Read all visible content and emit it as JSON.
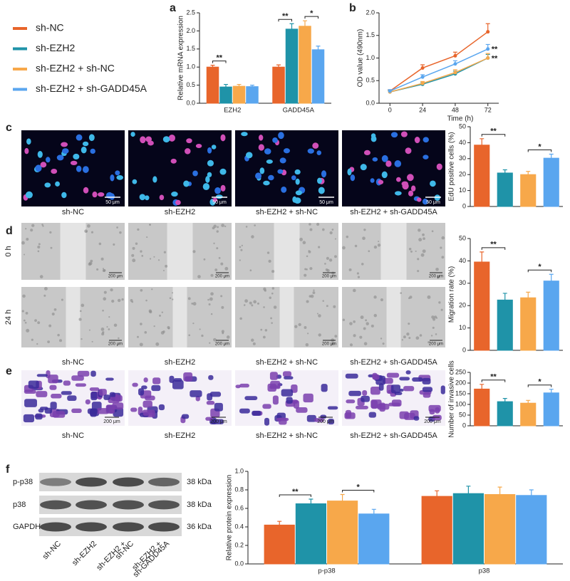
{
  "chart_data": [
    {
      "type": "bar",
      "ylabel": "Relative mRNA expression",
      "categories": [
        "EZH2",
        "GADD45A"
      ],
      "series": [
        {
          "name": "sh-NC",
          "color": "#e8652b",
          "values": [
            1.0,
            1.0
          ],
          "errors": [
            0.05,
            0.06
          ]
        },
        {
          "name": "sh-EZH2",
          "color": "#1f93a8",
          "values": [
            0.45,
            2.05
          ],
          "errors": [
            0.07,
            0.15
          ]
        },
        {
          "name": "sh-EZH2 + sh-NC",
          "color": "#f7a84a",
          "values": [
            0.47,
            2.13
          ],
          "errors": [
            0.05,
            0.15
          ]
        },
        {
          "name": "sh-EZH2 + sh-GADD45A",
          "color": "#5aa6ef",
          "values": [
            0.46,
            1.48
          ],
          "errors": [
            0.04,
            0.1
          ]
        }
      ],
      "ylim": [
        0,
        2.5
      ],
      "yticks": [
        {
          "value": 0,
          "label": "0.0"
        },
        {
          "value": 0.5,
          "label": "0.5"
        },
        {
          "value": 1,
          "label": "1.0"
        },
        {
          "value": 1.5,
          "label": "1.5"
        },
        {
          "value": 2,
          "label": "2.0"
        },
        {
          "value": 2.5,
          "label": "2.5"
        }
      ],
      "annotations": [
        {
          "text": "**",
          "category": 0,
          "between": [
            0,
            1
          ]
        },
        {
          "text": "**",
          "category": 1,
          "between": [
            0,
            1
          ]
        },
        {
          "text": "*",
          "category": 1,
          "between": [
            2,
            3
          ]
        }
      ]
    },
    {
      "type": "line",
      "xlabel": "Time (h)",
      "ylabel": "OD value (490nm)",
      "x": [
        0,
        24,
        48,
        72
      ],
      "series": [
        {
          "color": "#e8652b",
          "values": [
            0.27,
            0.78,
            1.05,
            1.58
          ],
          "errors": [
            0.03,
            0.07,
            0.08,
            0.18
          ]
        },
        {
          "color": "#1f93a8",
          "values": [
            0.25,
            0.42,
            0.65,
            1.0
          ],
          "errors": [
            0.03,
            0.04,
            0.06,
            0.08
          ]
        },
        {
          "color": "#f7a84a",
          "values": [
            0.25,
            0.44,
            0.68,
            1.0
          ],
          "errors": [
            0.03,
            0.04,
            0.06,
            0.1
          ]
        },
        {
          "color": "#5aa6ef",
          "values": [
            0.27,
            0.58,
            0.87,
            1.2
          ],
          "errors": [
            0.03,
            0.05,
            0.07,
            0.1
          ]
        }
      ],
      "xlim": [
        -8,
        80
      ],
      "xticks": [
        0,
        24,
        48,
        72
      ],
      "ylim": [
        0,
        2
      ],
      "yticks": [
        {
          "value": 0,
          "label": "0.0"
        },
        {
          "value": 0.5,
          "label": "0.5"
        },
        {
          "value": 1,
          "label": "1.0"
        },
        {
          "value": 1.5,
          "label": "1.5"
        },
        {
          "value": 2,
          "label": "2.0"
        }
      ],
      "annotations": [
        {
          "text": "**",
          "series": 3
        },
        {
          "text": "**",
          "series": 1
        }
      ]
    },
    {
      "type": "bar",
      "ylabel": "EdU positive cells (%)",
      "categories": [
        null,
        null,
        null,
        null
      ],
      "values": [
        38.5,
        21,
        20,
        30.3
      ],
      "errors": [
        4,
        2,
        2,
        2.5
      ],
      "colors": [
        "#e8652b",
        "#1f93a8",
        "#f7a84a",
        "#5aa6ef"
      ],
      "ylim": [
        0,
        50
      ],
      "yticks": [
        0,
        10,
        20,
        30,
        40,
        50
      ],
      "annotations": [
        {
          "text": "**",
          "between": [
            0,
            1
          ]
        },
        {
          "text": "*",
          "between": [
            2,
            3
          ]
        }
      ]
    },
    {
      "type": "bar",
      "ylabel": "Migration rate (%)",
      "categories": [
        null,
        null,
        null,
        null
      ],
      "values": [
        39.5,
        22.5,
        23.5,
        31
      ],
      "errors": [
        4.5,
        3,
        2.5,
        3
      ],
      "colors": [
        "#e8652b",
        "#1f93a8",
        "#f7a84a",
        "#5aa6ef"
      ],
      "ylim": [
        0,
        50
      ],
      "yticks": [
        0,
        10,
        20,
        30,
        40,
        50
      ],
      "annotations": [
        {
          "text": "**",
          "between": [
            0,
            1
          ]
        },
        {
          "text": "*",
          "between": [
            2,
            3
          ]
        }
      ]
    },
    {
      "type": "bar",
      "ylabel": "Number of invasive cells",
      "categories": [
        null,
        null,
        null,
        null
      ],
      "values": [
        172,
        113,
        106,
        154
      ],
      "errors": [
        22,
        15,
        13,
        17
      ],
      "colors": [
        "#e8652b",
        "#1f93a8",
        "#f7a84a",
        "#5aa6ef"
      ],
      "ylim": [
        0,
        250
      ],
      "yticks": [
        0,
        50,
        100,
        150,
        200,
        250
      ],
      "annotations": [
        {
          "text": "**",
          "between": [
            0,
            1
          ]
        },
        {
          "text": "*",
          "between": [
            2,
            3
          ]
        }
      ]
    },
    {
      "type": "bar",
      "ylabel": "Relative protein expression",
      "categories": [
        "p-p38",
        "p38"
      ],
      "series": [
        {
          "color": "#e8652b",
          "values": [
            0.42,
            0.73
          ],
          "errors": [
            0.04,
            0.06
          ]
        },
        {
          "color": "#1f93a8",
          "values": [
            0.65,
            0.76
          ],
          "errors": [
            0.05,
            0.08
          ]
        },
        {
          "color": "#f7a84a",
          "values": [
            0.68,
            0.75
          ],
          "errors": [
            0.07,
            0.08
          ]
        },
        {
          "color": "#5aa6ef",
          "values": [
            0.54,
            0.74
          ],
          "errors": [
            0.05,
            0.06
          ]
        }
      ],
      "ylim": [
        0,
        1
      ],
      "yticks": [
        {
          "value": 0,
          "label": "0.0"
        },
        {
          "value": 0.2,
          "label": "0.2"
        },
        {
          "value": 0.4,
          "label": "0.4"
        },
        {
          "value": 0.6,
          "label": "0.6"
        },
        {
          "value": 0.8,
          "label": "0.8"
        },
        {
          "value": 1,
          "label": "1.0"
        }
      ],
      "annotations": [
        {
          "text": "**",
          "category": 0,
          "between": [
            0,
            1
          ]
        },
        {
          "text": "*",
          "category": 0,
          "between": [
            2,
            3
          ]
        }
      ]
    }
  ],
  "panels": {
    "letters": [
      "a",
      "b",
      "c",
      "d",
      "e",
      "f"
    ],
    "groups": [
      "sh-NC",
      "sh-EZH2",
      "sh-EZH2 + sh-NC",
      "sh-EZH2 + sh-GADD45A"
    ],
    "scale_bars": [
      "50 μm",
      "200 μm"
    ],
    "times": [
      "0 h",
      "24 h"
    ],
    "blot": {
      "rows": [
        {
          "name": "p-p38",
          "size": "38 kDa"
        },
        {
          "name": "p38",
          "size": "38 kDa"
        },
        {
          "name": "GAPDH",
          "size": "36 kDa"
        }
      ],
      "lanes": [
        [
          "sh-NC"
        ],
        [
          "sh-EZH2"
        ],
        [
          "sh-EZH2 +",
          "sh-NC"
        ],
        [
          "sh-EZH2 +",
          "sh-GADD45A"
        ]
      ]
    }
  }
}
